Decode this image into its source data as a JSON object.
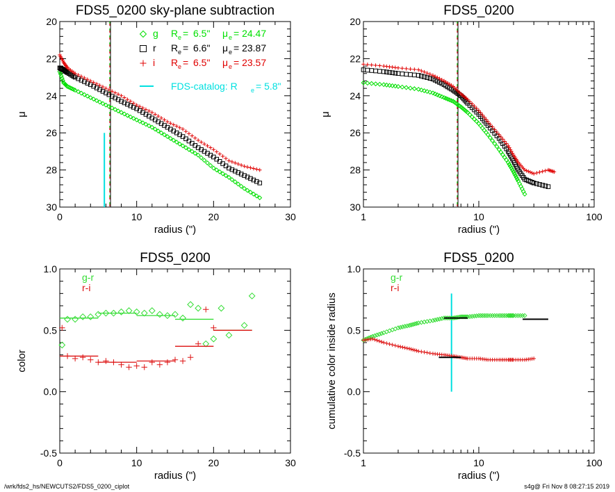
{
  "footer": {
    "path": "/wrk/fds2_hs/NEWCUTS2/FDS5_0200_ciplot",
    "stamp": "s4g@  Fri Nov  8 08:27:15 2019"
  },
  "colors": {
    "g": "#00e000",
    "r": "#000000",
    "i": "#e00000",
    "catalog": "#00e0e0",
    "grr": "#33dd33",
    "ri": "#dd1111"
  },
  "chart_data": [
    {
      "id": "p1",
      "type": "scatter",
      "title": "FDS5_0200 sky-plane subtraction",
      "xlabel": "radius (\")",
      "ylabel": "μ",
      "xlim": [
        0,
        30
      ],
      "ylim": [
        30,
        20
      ],
      "xticks": [
        0,
        10,
        20,
        30
      ],
      "yticks": [
        20,
        22,
        24,
        26,
        28,
        30
      ],
      "xscale": "linear",
      "legend": [
        {
          "band": "g",
          "marker": "diamond",
          "color": "#00e000",
          "Re": "6.5\"",
          "mu": "24.47"
        },
        {
          "band": "r",
          "marker": "square",
          "color": "#000000",
          "Re": "6.6\"",
          "mu": "23.87"
        },
        {
          "band": "i",
          "marker": "plus",
          "color": "#e00000",
          "Re": "6.5\"",
          "mu": "23.57"
        }
      ],
      "catalog_label": "FDS-catalog: R",
      "catalog_value": "5.8\"",
      "catalog_re": 5.8,
      "catalog_line": [
        26.0,
        30.0
      ],
      "vlines": [
        6.5,
        6.6
      ],
      "series": [
        {
          "name": "g",
          "x": [
            0,
            0.5,
            1,
            2,
            4,
            6,
            8,
            10,
            12,
            14,
            16,
            18,
            20,
            22,
            24,
            26
          ],
          "y": [
            22.7,
            23.3,
            23.5,
            23.7,
            24.1,
            24.5,
            24.9,
            25.3,
            25.7,
            26.2,
            26.7,
            27.2,
            27.9,
            28.4,
            29.0,
            29.5
          ]
        },
        {
          "name": "r",
          "x": [
            0,
            0.5,
            1,
            2,
            4,
            6,
            8,
            10,
            12,
            14,
            16,
            18,
            20,
            22,
            24,
            26
          ],
          "y": [
            22.5,
            22.6,
            22.75,
            23.0,
            23.4,
            23.85,
            24.3,
            24.7,
            25.2,
            25.7,
            26.2,
            26.8,
            27.3,
            27.9,
            28.3,
            28.7
          ]
        },
        {
          "name": "i",
          "x": [
            0,
            0.5,
            1,
            2,
            4,
            6,
            8,
            10,
            12,
            14,
            16,
            18,
            20,
            22,
            24,
            26
          ],
          "y": [
            21.8,
            22.2,
            22.5,
            22.8,
            23.2,
            23.6,
            24.0,
            24.5,
            24.9,
            25.4,
            25.8,
            26.4,
            26.9,
            27.5,
            27.8,
            28.0
          ]
        }
      ]
    },
    {
      "id": "p2",
      "type": "scatter",
      "title": "FDS5_0200",
      "xlabel": "radius (\")",
      "ylabel": "μ",
      "xlim": [
        1,
        100
      ],
      "ylim": [
        30,
        20
      ],
      "xticks": [
        1,
        10,
        100
      ],
      "yticks": [
        20,
        22,
        24,
        26,
        28,
        30
      ],
      "xscale": "log",
      "vlines": [
        6.5,
        6.6
      ],
      "series": [
        {
          "name": "g",
          "x": [
            1,
            1.5,
            2,
            3,
            4,
            5,
            6,
            7,
            8,
            10,
            12,
            15,
            18,
            20,
            22,
            25
          ],
          "y": [
            23.3,
            23.4,
            23.5,
            23.65,
            23.85,
            24.1,
            24.3,
            24.6,
            24.9,
            25.5,
            26.1,
            26.9,
            27.6,
            28.1,
            28.6,
            29.3
          ]
        },
        {
          "name": "r",
          "x": [
            1,
            1.5,
            2,
            3,
            4,
            5,
            6,
            7,
            8,
            10,
            12,
            15,
            18,
            20,
            22,
            25,
            30,
            40
          ],
          "y": [
            22.6,
            22.7,
            22.8,
            22.9,
            23.1,
            23.4,
            23.7,
            24.0,
            24.4,
            25.0,
            25.6,
            26.3,
            27.0,
            27.5,
            28.0,
            28.5,
            28.7,
            28.9
          ]
        },
        {
          "name": "i",
          "x": [
            1,
            1.5,
            2,
            3,
            4,
            5,
            6,
            7,
            8,
            10,
            12,
            15,
            18,
            20,
            22,
            25,
            30,
            40,
            45
          ],
          "y": [
            22.3,
            22.4,
            22.5,
            22.6,
            22.9,
            23.2,
            23.5,
            23.9,
            24.2,
            24.8,
            25.4,
            26.1,
            26.7,
            27.2,
            27.6,
            28.0,
            28.2,
            28.0,
            28.1
          ]
        }
      ]
    },
    {
      "id": "p3",
      "type": "scatter",
      "title": "FDS5_0200",
      "xlabel": "radius (\")",
      "ylabel": "color",
      "xlim": [
        0,
        30
      ],
      "ylim": [
        -0.5,
        1.0
      ],
      "xticks": [
        0,
        10,
        20,
        30
      ],
      "yticks": [
        -0.5,
        0.0,
        0.5,
        1.0
      ],
      "yticklabels": [
        "-0.5",
        "0.0",
        "0.5",
        "1.0"
      ],
      "xscale": "linear",
      "legend": [
        {
          "name": "g-r",
          "color": "#33dd33"
        },
        {
          "name": "r-i",
          "color": "#dd1111"
        }
      ],
      "series": [
        {
          "name": "g-r",
          "marker": "diamond",
          "x": [
            0.3,
            1,
            2,
            3,
            4,
            5,
            6,
            7,
            8,
            9,
            10,
            11,
            12,
            13,
            14,
            15,
            16,
            17,
            18,
            19,
            20,
            21,
            22,
            24,
            25
          ],
          "y": [
            0.38,
            0.59,
            0.59,
            0.61,
            0.61,
            0.63,
            0.64,
            0.64,
            0.65,
            0.66,
            0.65,
            0.64,
            0.66,
            0.63,
            0.62,
            0.63,
            0.6,
            0.71,
            0.68,
            0.39,
            0.43,
            0.68,
            0.46,
            0.54,
            0.78
          ]
        },
        {
          "name": "r-i",
          "marker": "plus",
          "x": [
            0.3,
            1,
            2,
            3,
            4,
            5,
            6,
            7,
            8,
            9,
            10,
            11,
            12,
            13,
            14,
            15,
            16,
            17,
            18,
            19,
            20
          ],
          "y": [
            0.52,
            0.29,
            0.27,
            0.28,
            0.26,
            0.24,
            0.25,
            0.24,
            0.22,
            0.2,
            0.21,
            0.2,
            0.24,
            0.22,
            0.24,
            0.26,
            0.25,
            0.28,
            0.39,
            0.67,
            0.52
          ]
        }
      ],
      "segments": [
        {
          "series": "g-r",
          "x": [
            0,
            5
          ],
          "y": 0.6
        },
        {
          "series": "g-r",
          "x": [
            5,
            10
          ],
          "y": 0.64
        },
        {
          "series": "g-r",
          "x": [
            10,
            15
          ],
          "y": 0.62
        },
        {
          "series": "g-r",
          "x": [
            15,
            20
          ],
          "y": 0.59
        },
        {
          "series": "g-r",
          "x": [
            20,
            25
          ],
          "y": 0.5
        },
        {
          "series": "r-i",
          "x": [
            0,
            5
          ],
          "y": 0.29
        },
        {
          "series": "r-i",
          "x": [
            5,
            10
          ],
          "y": 0.24
        },
        {
          "series": "r-i",
          "x": [
            10,
            15
          ],
          "y": 0.25
        },
        {
          "series": "r-i",
          "x": [
            15,
            20
          ],
          "y": 0.37
        },
        {
          "series": "r-i",
          "x": [
            20,
            25
          ],
          "y": 0.5
        }
      ]
    },
    {
      "id": "p4",
      "type": "scatter",
      "title": "FDS5_0200",
      "xlabel": "radius (\")",
      "ylabel": "cumulative color inside radius",
      "xlim": [
        1,
        100
      ],
      "ylim": [
        -0.5,
        1.0
      ],
      "xticks": [
        1,
        10,
        100
      ],
      "yticks": [
        -0.5,
        0.0,
        0.5,
        1.0
      ],
      "yticklabels": [
        "-0.5",
        "0.0",
        "0.5",
        "1.0"
      ],
      "xscale": "log",
      "legend": [
        {
          "name": "g-r",
          "color": "#33dd33"
        },
        {
          "name": "r-i",
          "color": "#dd1111"
        }
      ],
      "catalog_re": 5.8,
      "catalog_line": [
        0.0,
        0.8
      ],
      "series": [
        {
          "name": "g-r",
          "marker": "diamond",
          "x": [
            1,
            1.2,
            1.5,
            2,
            2.5,
            3,
            4,
            5,
            6,
            7,
            8,
            10,
            12,
            15,
            18,
            20,
            25
          ],
          "y": [
            0.42,
            0.45,
            0.48,
            0.52,
            0.54,
            0.56,
            0.58,
            0.6,
            0.6,
            0.61,
            0.61,
            0.62,
            0.62,
            0.62,
            0.62,
            0.62,
            0.62
          ]
        },
        {
          "name": "r-i",
          "marker": "plus",
          "x": [
            1,
            1.2,
            1.5,
            2,
            2.5,
            3,
            4,
            5,
            6,
            7,
            8,
            10,
            12,
            15,
            18,
            20,
            25,
            30
          ],
          "y": [
            0.42,
            0.43,
            0.4,
            0.37,
            0.35,
            0.33,
            0.31,
            0.3,
            0.29,
            0.28,
            0.27,
            0.27,
            0.26,
            0.26,
            0.26,
            0.26,
            0.26,
            0.27
          ]
        }
      ],
      "segments": [
        {
          "series": "g-r",
          "x": [
            5,
            8
          ],
          "y": 0.6
        },
        {
          "series": "g-r",
          "x": [
            24,
            40
          ],
          "y": 0.59
        },
        {
          "series": "r-i",
          "x": [
            4.5,
            7
          ],
          "y": 0.28
        }
      ]
    }
  ]
}
